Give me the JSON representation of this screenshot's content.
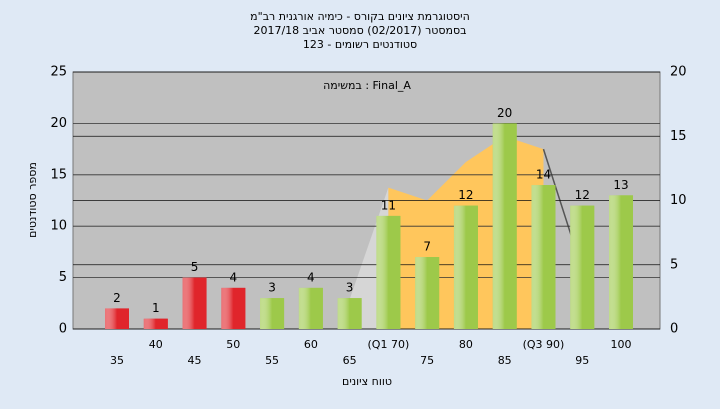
{
  "chart_data": {
    "type": "bar",
    "title": [
      "היסטוגרמת ציונים בקורס - כימיה אורגנית רב\"מ",
      "בסמסטר  (02/2017)  סמסטר אביב 2017/18",
      "סטודנטים רשומים - 123"
    ],
    "annotation": "במשימה : Final_A",
    "x_label": "טווח ציונים",
    "y_label": "מספר סטודנטים",
    "categories": [
      "35",
      "40",
      "45",
      "50",
      "55",
      "60",
      "65",
      "(Q1 70)",
      "75",
      "80",
      "85",
      "(Q3 90)",
      "95",
      "100"
    ],
    "values": [
      2,
      1,
      5,
      4,
      3,
      4,
      3,
      11,
      7,
      12,
      20,
      14,
      12,
      13
    ],
    "colors": [
      "#e0252b",
      "#e0252b",
      "#e0252b",
      "#e0252b",
      "#9dc94a",
      "#9dc94a",
      "#9dc94a",
      "#9dc94a",
      "#9dc94a",
      "#9dc94a",
      "#9dc94a",
      "#9dc94a",
      "#9dc94a",
      "#9dc94a"
    ],
    "series": [
      {
        "type": "area",
        "axis": "y2",
        "color": "#d6d6d6",
        "values": [
          null,
          null,
          null,
          null,
          null,
          null,
          2.3,
          11,
          null,
          null,
          null,
          null,
          null,
          null
        ]
      },
      {
        "type": "area",
        "axis": "y2",
        "color": "#ffc65c",
        "values": [
          null,
          null,
          null,
          null,
          null,
          null,
          null,
          11,
          10,
          13,
          15,
          14,
          null,
          null
        ]
      },
      {
        "type": "line",
        "axis": "y2",
        "color": "#555555",
        "values": [
          null,
          null,
          null,
          null,
          null,
          null,
          null,
          null,
          null,
          null,
          null,
          14,
          4.6,
          null
        ]
      }
    ],
    "ylim": [
      0,
      25
    ],
    "yticks": [
      0,
      5,
      10,
      15,
      20,
      25
    ],
    "y2lim": [
      0,
      20
    ],
    "y2ticks": [
      0,
      5,
      10,
      15,
      20
    ],
    "grid": true
  }
}
